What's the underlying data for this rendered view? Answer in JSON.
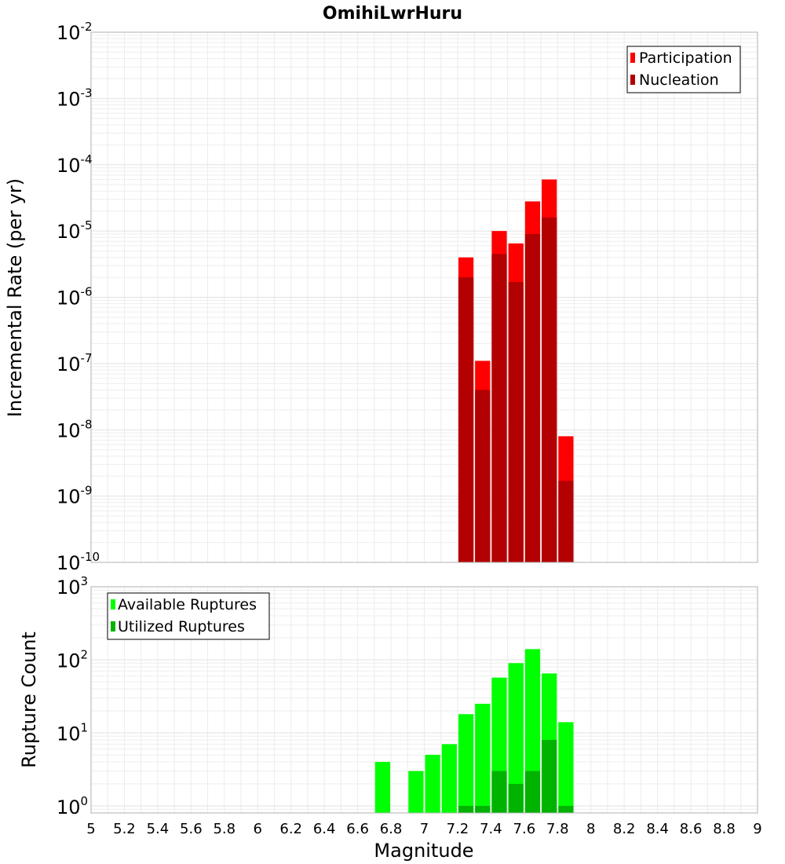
{
  "chart_data": [
    {
      "type": "bar",
      "title": "OmihiLwrHuru",
      "xlabel": "",
      "ylabel": "Incremental Rate (per yr)",
      "yscale": "log",
      "xlim": [
        5,
        9
      ],
      "ylim": [
        1e-10,
        0.01
      ],
      "grid": true,
      "legend_position": "top-right",
      "bar_width": 0.1,
      "series": [
        {
          "name": "Participation",
          "color": "#ff0000",
          "x": [
            7.25,
            7.35,
            7.45,
            7.55,
            7.65,
            7.75,
            7.85
          ],
          "values": [
            4e-06,
            1.1e-07,
            1e-05,
            6.5e-06,
            2.8e-05,
            6e-05,
            8e-09
          ]
        },
        {
          "name": "Nucleation",
          "color": "#b30000",
          "x": [
            7.25,
            7.35,
            7.45,
            7.55,
            7.65,
            7.75,
            7.85
          ],
          "values": [
            2e-06,
            4e-08,
            4.5e-06,
            1.7e-06,
            9e-06,
            1.6e-05,
            1.7e-09
          ]
        }
      ]
    },
    {
      "type": "bar",
      "title": "",
      "xlabel": "Magnitude",
      "ylabel": "Rupture Count",
      "yscale": "log",
      "xlim": [
        5,
        9
      ],
      "ylim": [
        0.8,
        1000
      ],
      "grid": true,
      "legend_position": "top-left",
      "bar_width": 0.1,
      "series": [
        {
          "name": "Available Ruptures",
          "color": "#00ff00",
          "x": [
            6.75,
            6.95,
            7.05,
            7.15,
            7.25,
            7.35,
            7.45,
            7.55,
            7.65,
            7.75,
            7.85
          ],
          "values": [
            4,
            3,
            5,
            7,
            18,
            25,
            57,
            90,
            140,
            65,
            14
          ]
        },
        {
          "name": "Utilized Ruptures",
          "color": "#00b300",
          "x": [
            7.25,
            7.35,
            7.45,
            7.55,
            7.65,
            7.75,
            7.85
          ],
          "values": [
            1,
            1,
            3,
            2,
            3,
            8,
            1
          ]
        }
      ]
    }
  ],
  "axes": {
    "x_ticks": [
      "5",
      "5.2",
      "5.4",
      "5.6",
      "5.8",
      "6",
      "6.2",
      "6.4",
      "6.6",
      "6.8",
      "7",
      "7.2",
      "7.4",
      "7.6",
      "7.8",
      "8",
      "8.2",
      "8.4",
      "8.6",
      "8.8",
      "9"
    ],
    "top_y_ticks": [
      {
        "base": "10",
        "exp": "-2"
      },
      {
        "base": "10",
        "exp": "-3"
      },
      {
        "base": "10",
        "exp": "-4"
      },
      {
        "base": "10",
        "exp": "-5"
      },
      {
        "base": "10",
        "exp": "-6"
      },
      {
        "base": "10",
        "exp": "-7"
      },
      {
        "base": "10",
        "exp": "-8"
      },
      {
        "base": "10",
        "exp": "-9"
      },
      {
        "base": "10",
        "exp": "-10"
      }
    ],
    "bottom_y_ticks": [
      {
        "base": "10",
        "exp": "3"
      },
      {
        "base": "10",
        "exp": "2"
      },
      {
        "base": "10",
        "exp": "1"
      },
      {
        "base": "10",
        "exp": "0"
      }
    ]
  }
}
